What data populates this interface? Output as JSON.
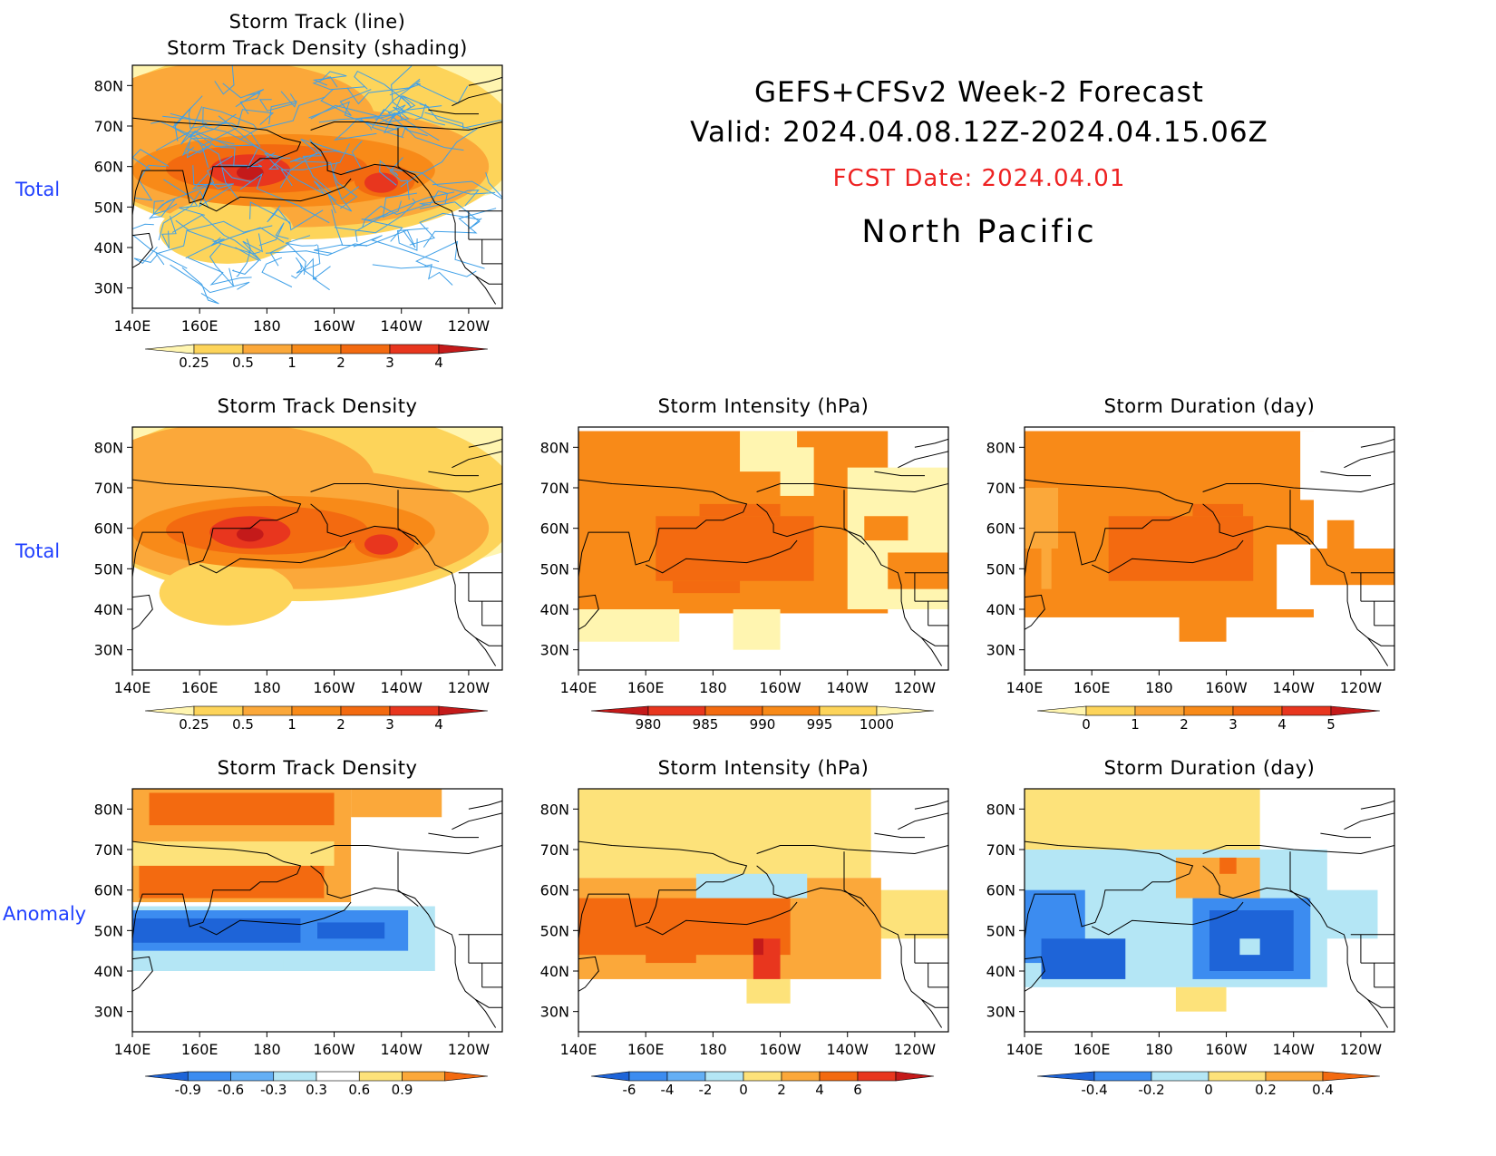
{
  "header": {
    "line1": "GEFS+CFSv2 Week-2 Forecast",
    "line2": "Valid: 2024.04.08.12Z-2024.04.15.06Z",
    "fcst_date": "FCST Date: 2024.04.01",
    "region": "North Pacific",
    "fcst_color": "#ee2222"
  },
  "row_labels": {
    "total_top": "Total",
    "total_mid": "Total",
    "anomaly": "Anomaly"
  },
  "axes": {
    "x_ticks": [
      "140E",
      "160E",
      "180",
      "160W",
      "140W",
      "120W"
    ],
    "y_ticks": [
      "80N",
      "70N",
      "60N",
      "50N",
      "40N",
      "30N"
    ]
  },
  "panels": {
    "track": {
      "title": "Storm Track (line)\nStorm Track Density (shading)"
    },
    "density_total": {
      "title": "Storm Track Density"
    },
    "intensity_total": {
      "title": "Storm Intensity (hPa)"
    },
    "duration_total": {
      "title": "Storm Duration (day)"
    },
    "density_anom": {
      "title": "Storm Track Density"
    },
    "intensity_anom": {
      "title": "Storm Intensity (hPa)"
    },
    "duration_anom": {
      "title": "Storm Duration (day)"
    }
  },
  "colorbars": {
    "density": {
      "labels": [
        "0.25",
        "0.5",
        "1",
        "2",
        "3",
        "4"
      ],
      "colors": [
        "#fff5b0",
        "#fdd45a",
        "#fba83a",
        "#f88a18",
        "#f36a10",
        "#e8361e",
        "#c41a1a"
      ]
    },
    "intensity": {
      "labels": [
        "980",
        "985",
        "990",
        "995",
        "1000"
      ],
      "colors": [
        "#c41a1a",
        "#e8361e",
        "#f36a10",
        "#f88a18",
        "#fdd45a",
        "#fff5b0"
      ]
    },
    "duration": {
      "labels": [
        "0",
        "1",
        "2",
        "3",
        "4",
        "5"
      ],
      "colors": [
        "#fff5b0",
        "#fdd45a",
        "#fba83a",
        "#f88a18",
        "#f36a10",
        "#e8361e",
        "#c41a1a"
      ]
    },
    "density_anom": {
      "labels": [
        "-0.9",
        "-0.6",
        "-0.3",
        "0.3",
        "0.6",
        "0.9"
      ],
      "colors": [
        "#1e64d8",
        "#3c8cf0",
        "#64aff5",
        "#b4e6f5",
        "#ffffff",
        "#fde27a",
        "#fba83a",
        "#f36a10"
      ]
    },
    "intensity_anom": {
      "labels": [
        "-6",
        "-4",
        "-2",
        "0",
        "2",
        "4",
        "6"
      ],
      "colors": [
        "#1e64d8",
        "#3c8cf0",
        "#64aff5",
        "#b4e6f5",
        "#fde27a",
        "#fba83a",
        "#f36a10",
        "#e8361e",
        "#c41a1a"
      ]
    },
    "duration_anom": {
      "labels": [
        "-0.4",
        "-0.2",
        "0",
        "0.2",
        "0.4"
      ],
      "colors": [
        "#1e64d8",
        "#3c8cf0",
        "#b4e6f5",
        "#fde27a",
        "#fba83a",
        "#f36a10"
      ]
    }
  },
  "chart_data": [
    {
      "type": "heatmap",
      "title": "Storm Track (line) / Storm Track Density (shading)",
      "unit_levels": [
        0.25,
        0.5,
        1,
        2,
        3,
        4
      ],
      "xlim": [
        "140E",
        "110W"
      ],
      "ylim": [
        "25N",
        "85N"
      ],
      "features": [
        {
          "label": "primary max",
          "lon": "175E",
          "lat": "59N",
          "value": 4
        },
        {
          "label": "secondary max",
          "lon": "145W",
          "lat": "56N",
          "value": 3
        }
      ],
      "track_lines": "many light-blue storm track segments over the North Pacific"
    },
    {
      "type": "heatmap",
      "title": "Storm Track Density",
      "levels": [
        0.25,
        0.5,
        1,
        2,
        3,
        4
      ],
      "features": [
        {
          "label": "max",
          "lon": "175E",
          "lat": "59N",
          "value": 4
        },
        {
          "label": "max",
          "lon": "145W",
          "lat": "56N",
          "value": 3
        }
      ]
    },
    {
      "type": "heatmap",
      "title": "Storm Intensity (hPa)",
      "levels": [
        980,
        985,
        990,
        995,
        1000
      ],
      "features": [
        {
          "label": "deepest core",
          "region": "Bering Sea / Gulf of Alaska",
          "value_range": [
            985,
            990
          ]
        }
      ]
    },
    {
      "type": "heatmap",
      "title": "Storm Duration (day)",
      "levels": [
        0,
        1,
        2,
        3,
        4,
        5
      ],
      "features": [
        {
          "label": "longest",
          "region": "Bering Sea",
          "value_range": [
            3,
            4
          ]
        }
      ]
    },
    {
      "type": "heatmap",
      "title": "Storm Track Density (anomaly)",
      "levels": [
        -0.9,
        -0.6,
        -0.3,
        0.3,
        0.6,
        0.9
      ],
      "features": [
        {
          "label": "positive",
          "lat_band": "55N-85N",
          "value": 0.9
        },
        {
          "label": "negative",
          "lat_band": "40N-55N",
          "value": -0.9
        }
      ]
    },
    {
      "type": "heatmap",
      "title": "Storm Intensity (hPa) (anomaly)",
      "levels": [
        -6,
        -4,
        -2,
        0,
        2,
        4,
        6
      ],
      "features": [
        {
          "label": "positive",
          "region": "NW Pacific 40N-58N",
          "value": 4
        }
      ]
    },
    {
      "type": "heatmap",
      "title": "Storm Duration (day) (anomaly)",
      "levels": [
        -0.4,
        -0.2,
        0,
        0.2,
        0.4
      ],
      "features": [
        {
          "label": "negative",
          "region": "Gulf of Alaska",
          "value": -0.4
        }
      ]
    }
  ]
}
